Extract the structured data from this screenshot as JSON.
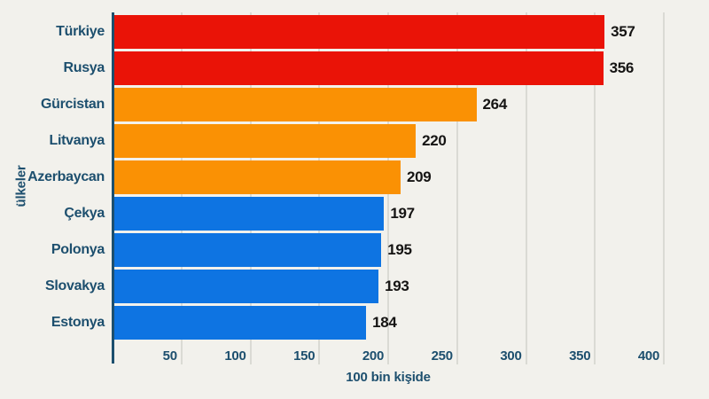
{
  "chart_data": {
    "type": "bar",
    "orientation": "horizontal",
    "title": "",
    "xlabel": "100 bin kişide",
    "ylabel": "ülkeler",
    "categories": [
      "Türkiye",
      "Rusya",
      "Gürcistan",
      "Litvanya",
      "Azerbaycan",
      "Çekya",
      "Polonya",
      "Slovakya",
      "Estonya"
    ],
    "values": [
      357,
      356,
      264,
      220,
      209,
      197,
      195,
      193,
      184
    ],
    "bar_colors": [
      "#ea1307",
      "#ea1307",
      "#fa9104",
      "#fa9104",
      "#fa9104",
      "#0e74e2",
      "#0e74e2",
      "#0e74e2",
      "#0e74e2"
    ],
    "xlim": [
      0,
      400
    ],
    "xticks": [
      50,
      100,
      150,
      200,
      250,
      300,
      350,
      400
    ],
    "grid": true,
    "legend": "none",
    "colors": {
      "background": "#f2f1ec",
      "red_group": "#ea1307",
      "orange_group": "#fa9104",
      "blue_group": "#0e74e2",
      "axis_line": "#1d4f6e",
      "gridline": "#dadad4",
      "category_text": "#1d4f6e",
      "value_text": "#151413"
    }
  }
}
